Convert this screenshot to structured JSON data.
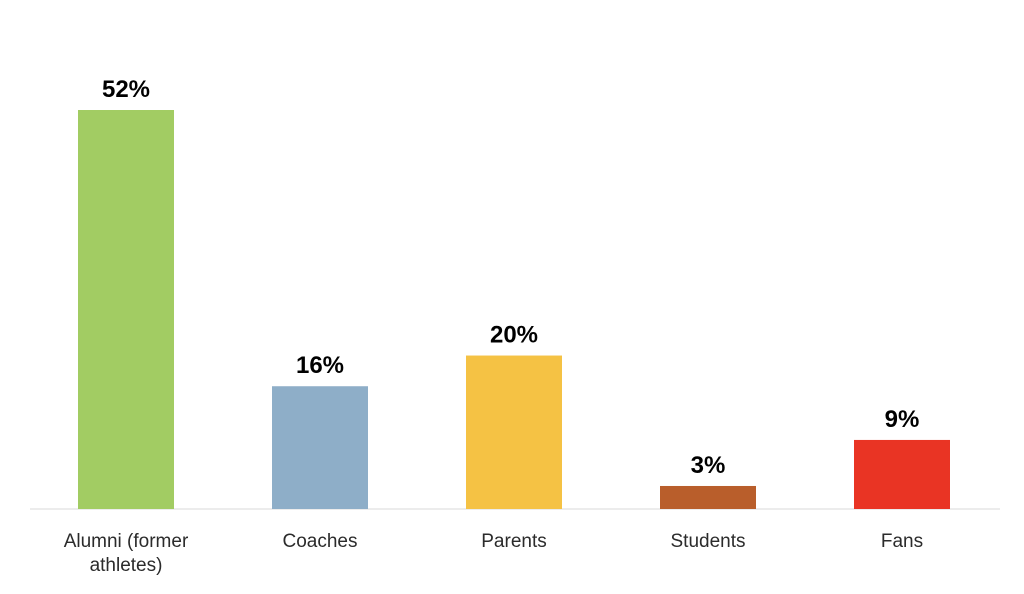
{
  "chart_data": {
    "type": "bar",
    "title": "",
    "xlabel": "",
    "ylabel": "",
    "ylim": [
      0,
      52
    ],
    "grid": false,
    "legend": "none",
    "unit": "%",
    "categories": [
      [
        "Alumni (former",
        "athletes)"
      ],
      [
        "Coaches"
      ],
      [
        "Parents"
      ],
      [
        "Students"
      ],
      [
        "Fans"
      ]
    ],
    "values": [
      52,
      16,
      20,
      3,
      9
    ],
    "value_labels": [
      "52%",
      "16%",
      "20%",
      "3%",
      "9%"
    ],
    "colors": [
      "#a2cc63",
      "#8eaec8",
      "#f5c244",
      "#b95e2b",
      "#e93424"
    ]
  }
}
